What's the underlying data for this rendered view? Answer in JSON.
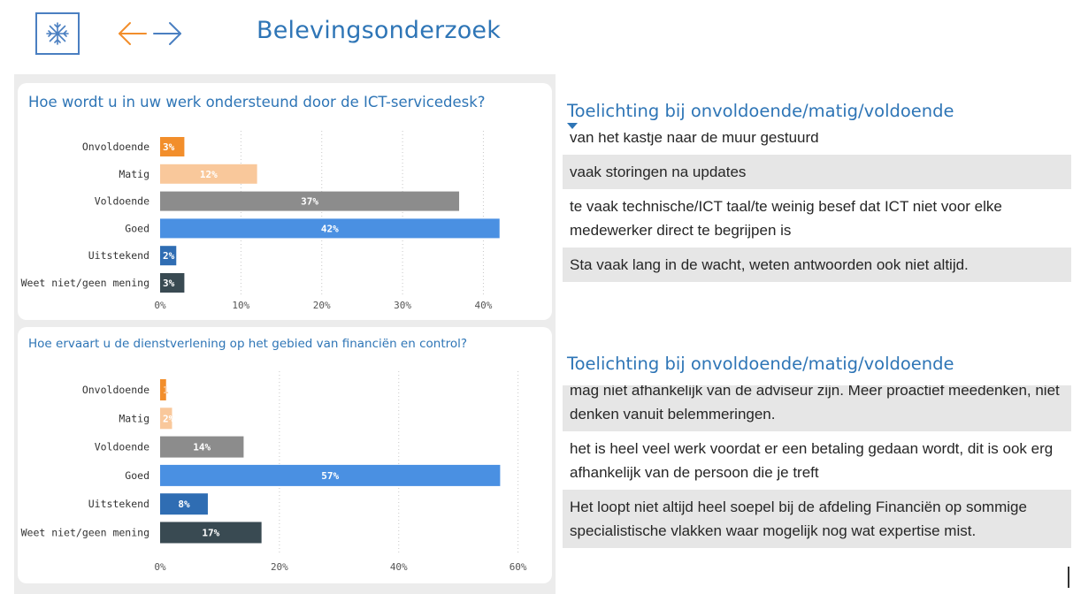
{
  "header": {
    "title": "Belevingsonderzoek",
    "logo_icon": "snowflake-icon",
    "back_icon": "arrow-left-icon",
    "forward_icon": "arrow-right-icon",
    "accent_color": "#f28e2b",
    "brand_color": "#2e75b6"
  },
  "charts": {
    "c1": {
      "title": "Hoe wordt u in uw werk ondersteund door de ICT-servicedesk?"
    },
    "c2": {
      "title": "Hoe ervaart u de dienstverlening op het gebied van financiën en control?"
    }
  },
  "chart_data": [
    {
      "type": "bar",
      "orientation": "horizontal",
      "title": "Hoe wordt u in uw werk ondersteund door de ICT-servicedesk?",
      "categories": [
        "Onvoldoende",
        "Matig",
        "Voldoende",
        "Goed",
        "Uitstekend",
        "Weet niet/geen mening"
      ],
      "values": [
        3,
        12,
        37,
        42,
        2,
        3
      ],
      "data_labels": [
        "3%",
        "12%",
        "37%",
        "42%",
        "2%",
        "3%"
      ],
      "bar_colors": [
        "#f28e2b",
        "#f9c89b",
        "#8c8c8c",
        "#4a90e2",
        "#2f6db3",
        "#394a52"
      ],
      "label_colors": [
        "#ffffff",
        "#ffffff",
        "#ffffff",
        "#ffffff",
        "#ffffff",
        "#ffffff"
      ],
      "xticks": [
        "0%",
        "10%",
        "20%",
        "30%",
        "40%"
      ],
      "xtick_values": [
        0,
        10,
        20,
        30,
        40
      ],
      "xlim": [
        0,
        44
      ],
      "grid": true
    },
    {
      "type": "bar",
      "orientation": "horizontal",
      "title": "Hoe ervaart u de dienstverlening op het gebied van financiën en control?",
      "categories": [
        "Onvoldoende",
        "Matig",
        "Voldoende",
        "Goed",
        "Uitstekend",
        "Weet niet/geen mening"
      ],
      "values": [
        1,
        2,
        14,
        57,
        8,
        17
      ],
      "data_labels": [
        "1",
        "2%",
        "14%",
        "57%",
        "8%",
        "17%"
      ],
      "bar_colors": [
        "#f28e2b",
        "#f9c89b",
        "#8c8c8c",
        "#4a90e2",
        "#2f6db3",
        "#394a52"
      ],
      "label_colors": [
        "#f9c89b",
        "#ffffff",
        "#ffffff",
        "#ffffff",
        "#ffffff",
        "#ffffff"
      ],
      "xticks": [
        "0%",
        "20%",
        "40%",
        "60%"
      ],
      "xtick_values": [
        0,
        20,
        40,
        60
      ],
      "xlim": [
        0,
        60.5
      ],
      "grid": true
    }
  ],
  "panels": [
    {
      "title": "Toelichting bij onvoldoende/matig/voldoende",
      "sort_icon": "sort-desc-icon",
      "comments": [
        "van het kastje naar de muur gestuurd",
        "vaak storingen na updates",
        "te vaak technische/ICT taal/te weinig besef dat ICT niet voor elke medewerker direct te begrijpen is",
        "Sta vaak lang in de wacht, weten antwoorden ook niet altijd."
      ]
    },
    {
      "title": "Toelichting bij onvoldoende/matig/voldoende",
      "comments": [
        "mag niet afhankelijk van de adviseur zijn. Meer proactief meedenken, niet denken vanuit belemmeringen.",
        "het is heel veel werk voordat er een betaling gedaan wordt, dit is ook erg afhankelijk van de persoon die je treft",
        "Het loopt niet altijd heel soepel bij de afdeling Financiën op sommige specialistische vlakken waar mogelijk nog wat expertise mist."
      ]
    }
  ]
}
